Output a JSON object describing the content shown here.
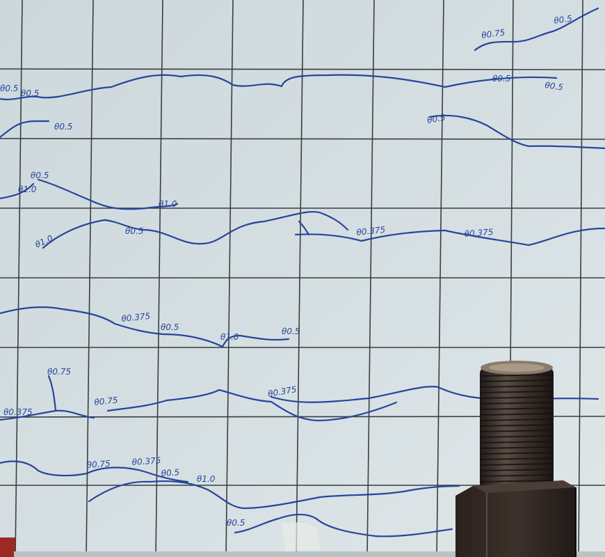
{
  "colors": {
    "wall": "#d3dde0",
    "grid": "#3a3d40",
    "crack_ink": "#27459a",
    "steel": "#3a2f2a"
  },
  "marks": [
    {
      "id": "m01",
      "text": "θ0.5"
    },
    {
      "id": "m02",
      "text": "θ0.5"
    },
    {
      "id": "m03",
      "text": "θ0.5"
    },
    {
      "id": "m04",
      "text": "θ0.75"
    },
    {
      "id": "m05",
      "text": "θ0.5"
    },
    {
      "id": "m06",
      "text": "θ0.5"
    },
    {
      "id": "m07",
      "text": "θ0.5"
    },
    {
      "id": "m08",
      "text": "θ0.5"
    },
    {
      "id": "m09",
      "text": "θ1.0"
    },
    {
      "id": "m10",
      "text": "θ1.0"
    },
    {
      "id": "m11",
      "text": "θ0.5"
    },
    {
      "id": "m12",
      "text": "θ0.375"
    },
    {
      "id": "m13",
      "text": "θ0.375"
    },
    {
      "id": "m14",
      "text": "θ0.375"
    },
    {
      "id": "m15",
      "text": "θ0.5"
    },
    {
      "id": "m16",
      "text": "θ0.75"
    },
    {
      "id": "m17",
      "text": "θ1.0"
    },
    {
      "id": "m18",
      "text": "θ1.0"
    },
    {
      "id": "m19",
      "text": "θ0.5"
    },
    {
      "id": "m20",
      "text": "θ0.375"
    },
    {
      "id": "m21",
      "text": "θ0.75"
    },
    {
      "id": "m22",
      "text": "θ0.375"
    },
    {
      "id": "m23",
      "text": "θ0.75"
    },
    {
      "id": "m24",
      "text": "θ0.375"
    },
    {
      "id": "m25",
      "text": "θ0.5"
    },
    {
      "id": "m26",
      "text": "θ1.0"
    },
    {
      "id": "m27",
      "text": "θ0.5"
    },
    {
      "id": "m28",
      "text": "θ0.5"
    }
  ]
}
